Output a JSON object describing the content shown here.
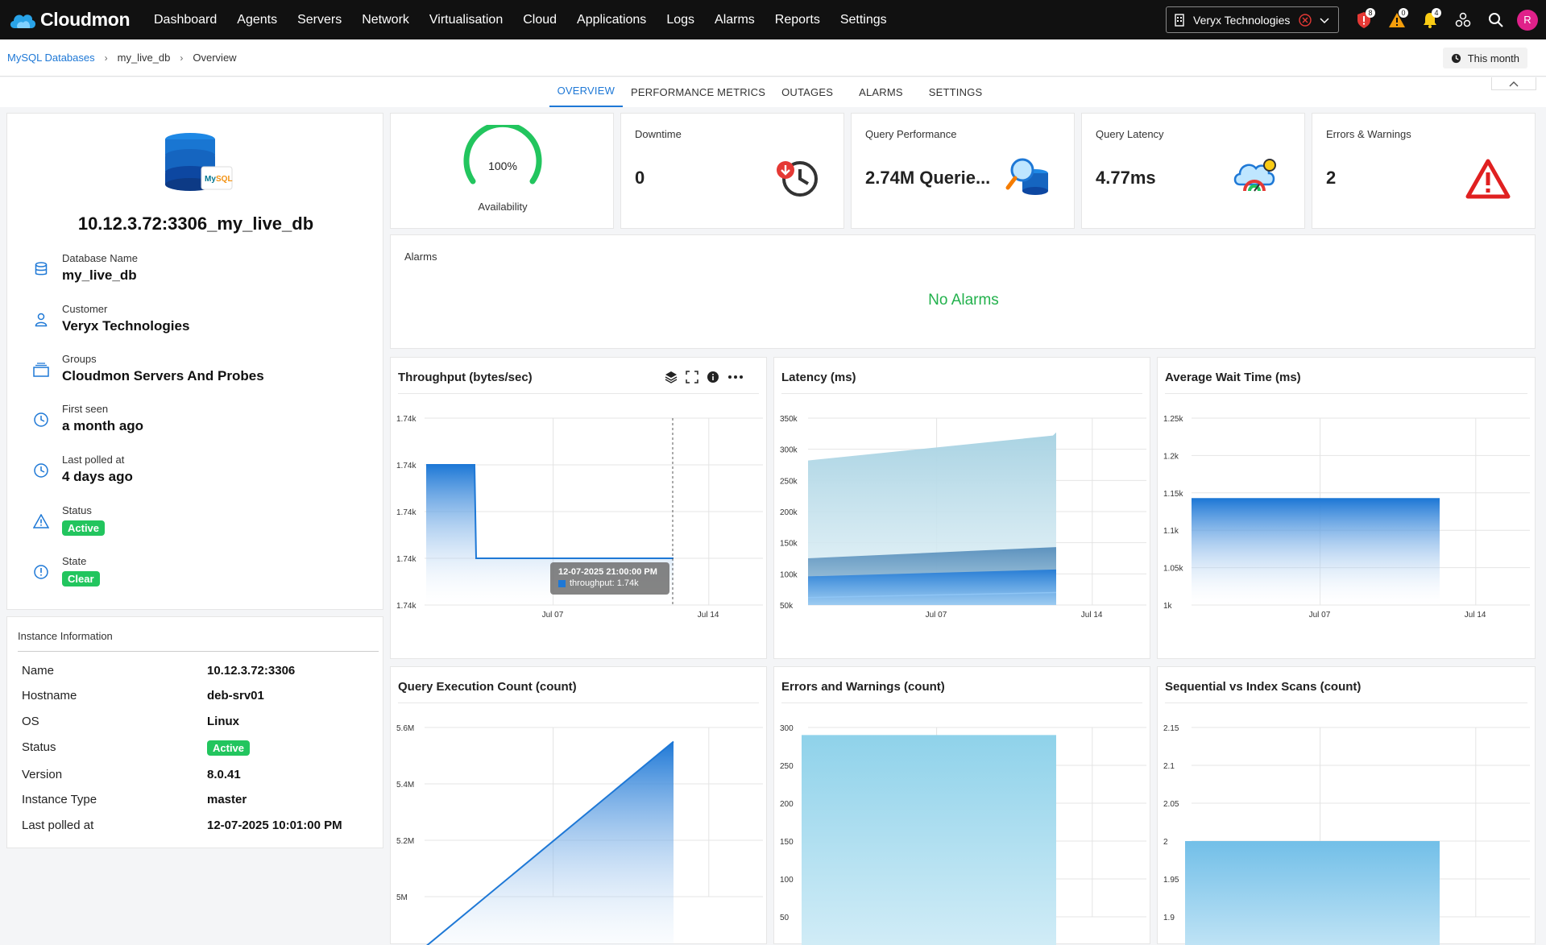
{
  "app": {
    "name": "Cloudmon"
  },
  "nav": [
    "Dashboard",
    "Agents",
    "Servers",
    "Network",
    "Virtualisation",
    "Cloud",
    "Applications",
    "Logs",
    "Alarms",
    "Reports",
    "Settings"
  ],
  "customer_select": {
    "value": "Veryx Technologies"
  },
  "top_badges": {
    "security": "8",
    "warnings": "0",
    "notifications": "4"
  },
  "user": {
    "initial": "R"
  },
  "breadcrumb": [
    "MySQL Databases",
    "my_live_db",
    "Overview"
  ],
  "time_range": "This month",
  "tabs": [
    "OVERVIEW",
    "PERFORMANCE METRICS",
    "OUTAGES",
    "ALARMS",
    "SETTINGS"
  ],
  "db": {
    "title": "10.12.3.72:3306_my_live_db",
    "details": [
      {
        "label": "Database Name",
        "value": "my_live_db",
        "icon": "database-icon"
      },
      {
        "label": "Customer",
        "value": "Veryx Technologies",
        "icon": "user-icon"
      },
      {
        "label": "Groups",
        "value": "Cloudmon Servers And Probes",
        "icon": "groups-icon"
      },
      {
        "label": "First seen",
        "value": "a month ago",
        "icon": "clock-icon"
      },
      {
        "label": "Last polled at",
        "value": "4 days ago",
        "icon": "clock-icon"
      },
      {
        "label": "Status",
        "value": "Active",
        "icon": "warning-icon"
      },
      {
        "label": "State",
        "value": "Clear",
        "icon": "info-icon"
      }
    ]
  },
  "instance": {
    "title": "Instance Information",
    "rows": [
      {
        "k": "Name",
        "v": "10.12.3.72:3306"
      },
      {
        "k": "Hostname",
        "v": "deb-srv01"
      },
      {
        "k": "OS",
        "v": "Linux"
      },
      {
        "k": "Status",
        "v": "Active"
      },
      {
        "k": "Version",
        "v": "8.0.41"
      },
      {
        "k": "Instance Type",
        "v": "master"
      },
      {
        "k": "Last polled at",
        "v": "12-07-2025 10:01:00 PM"
      }
    ]
  },
  "kpis": {
    "availability": {
      "value": "100%",
      "label": "Availability",
      "fraction": 1.0
    },
    "downtime": {
      "label": "Downtime",
      "value": "0"
    },
    "query_performance": {
      "label": "Query Performance",
      "value": "2.74M Querie..."
    },
    "query_latency": {
      "label": "Query Latency",
      "value": "4.77ms"
    },
    "errors": {
      "label": "Errors & Warnings",
      "value": "2"
    }
  },
  "alarms": {
    "title": "Alarms",
    "empty": "No Alarms"
  },
  "colors": {
    "accent": "#1e78d6",
    "active": "#22c55e",
    "alarm_ok": "#22b14c",
    "danger": "#e02020"
  },
  "chart_data": [
    {
      "id": "throughput",
      "type": "area",
      "title": "Throughput (bytes/sec)",
      "yticks": [
        "1.74k",
        "1.74k",
        "1.74k",
        "1.74k",
        "1.74k"
      ],
      "xticks": [
        "Jul 07",
        "Jul 14"
      ],
      "series": [
        {
          "name": "throughput",
          "values": [
            1.74,
            1.74,
            1.74,
            1.74,
            1.74
          ]
        }
      ],
      "tooltip": {
        "date": "12-07-2025 21:00:00 PM",
        "text": "throughput: 1.74k"
      }
    },
    {
      "id": "latency",
      "type": "area",
      "title": "Latency (ms)",
      "yticks": [
        "350k",
        "300k",
        "250k",
        "200k",
        "150k",
        "100k",
        "50k"
      ],
      "xticks": [
        "Jul 07",
        "Jul 14"
      ],
      "ylim": [
        50000,
        350000
      ]
    },
    {
      "id": "wait",
      "type": "area",
      "title": "Average Wait Time (ms)",
      "yticks": [
        "1.25k",
        "1.2k",
        "1.15k",
        "1.1k",
        "1.05k",
        "1k"
      ],
      "xticks": [
        "Jul 07",
        "Jul 14"
      ],
      "ylim": [
        1000,
        1250
      ]
    },
    {
      "id": "qexec",
      "type": "area",
      "title": "Query Execution Count (count)",
      "yticks": [
        "5.6M",
        "5.4M",
        "5.2M",
        "5M"
      ],
      "ylim": [
        4800000,
        5600000
      ]
    },
    {
      "id": "errors",
      "type": "area",
      "title": "Errors and Warnings (count)",
      "yticks": [
        "300",
        "250",
        "200",
        "150",
        "100",
        "50"
      ],
      "ylim": [
        0,
        300
      ]
    },
    {
      "id": "scans",
      "type": "area",
      "title": "Sequential vs Index Scans (count)",
      "yticks": [
        "2.15",
        "2.1",
        "2.05",
        "2",
        "1.95",
        "1.9"
      ],
      "ylim": [
        1.85,
        2.15
      ]
    }
  ]
}
